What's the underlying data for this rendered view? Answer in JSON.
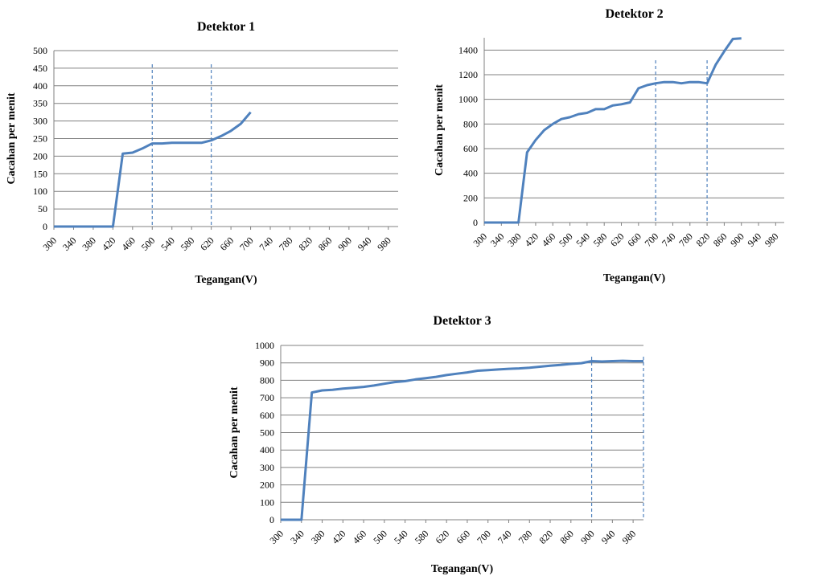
{
  "chart_data": [
    {
      "type": "line",
      "title": "Detektor 1",
      "xlabel": "Tegangan(V)",
      "ylabel": "Cacahan per menit",
      "ylim": [
        0,
        500
      ],
      "ytick_step": 50,
      "xlim": [
        300,
        1000
      ],
      "xticks": [
        300,
        340,
        380,
        420,
        460,
        500,
        540,
        580,
        620,
        660,
        700,
        740,
        780,
        820,
        860,
        900,
        940,
        980
      ],
      "grid": true,
      "markers_x": [
        500,
        620
      ],
      "series": [
        {
          "x": [
            300,
            320,
            340,
            360,
            380,
            400,
            420,
            440,
            460,
            480,
            500,
            520,
            540,
            560,
            580,
            600,
            620,
            640,
            660,
            680,
            700
          ],
          "y": [
            0,
            0,
            0,
            0,
            0,
            0,
            0,
            207,
            210,
            222,
            236,
            236,
            238,
            238,
            238,
            238,
            245,
            257,
            272,
            292,
            325
          ]
        }
      ],
      "color": "#4f81bd"
    },
    {
      "type": "line",
      "title": "Detektor 2",
      "xlabel": "Tegangan(V)",
      "ylabel": "Cacahan per menit",
      "ylim": [
        0,
        1500
      ],
      "ytick_step": 200,
      "xlim": [
        300,
        1000
      ],
      "xticks": [
        300,
        340,
        380,
        420,
        460,
        500,
        540,
        580,
        620,
        660,
        700,
        740,
        780,
        820,
        860,
        900,
        940,
        980
      ],
      "grid": true,
      "markers_x": [
        700,
        820
      ],
      "series": [
        {
          "x": [
            300,
            320,
            340,
            360,
            380,
            400,
            420,
            440,
            460,
            480,
            500,
            520,
            540,
            560,
            580,
            600,
            620,
            640,
            660,
            680,
            700,
            720,
            740,
            760,
            780,
            800,
            820,
            840,
            860,
            880,
            900
          ],
          "y": [
            0,
            0,
            0,
            0,
            0,
            570,
            670,
            750,
            800,
            840,
            855,
            880,
            890,
            920,
            920,
            950,
            960,
            975,
            1090,
            1115,
            1130,
            1140,
            1140,
            1130,
            1140,
            1140,
            1130,
            1280,
            1390,
            1490,
            1495
          ]
        }
      ],
      "color": "#4f81bd"
    },
    {
      "type": "line",
      "title": "Detektor 3",
      "xlabel": "Tegangan(V)",
      "ylabel": "Cacahan per menit",
      "ylim": [
        0,
        1000
      ],
      "ytick_step": 100,
      "xlim": [
        300,
        1000
      ],
      "xticks": [
        300,
        340,
        380,
        420,
        460,
        500,
        540,
        580,
        620,
        660,
        700,
        740,
        780,
        820,
        860,
        900,
        940,
        980
      ],
      "grid": true,
      "markers_x": [
        900,
        1000
      ],
      "series": [
        {
          "x": [
            300,
            320,
            340,
            360,
            380,
            400,
            420,
            440,
            460,
            480,
            500,
            520,
            540,
            560,
            580,
            600,
            620,
            640,
            660,
            680,
            700,
            720,
            740,
            760,
            780,
            800,
            820,
            840,
            860,
            880,
            900,
            920,
            940,
            960,
            980,
            1000
          ],
          "y": [
            0,
            0,
            0,
            730,
            742,
            745,
            752,
            757,
            762,
            770,
            780,
            790,
            795,
            805,
            812,
            820,
            830,
            838,
            845,
            855,
            858,
            862,
            866,
            868,
            872,
            878,
            884,
            888,
            894,
            898,
            910,
            908,
            910,
            912,
            910,
            910
          ]
        }
      ],
      "color": "#4f81bd"
    }
  ]
}
